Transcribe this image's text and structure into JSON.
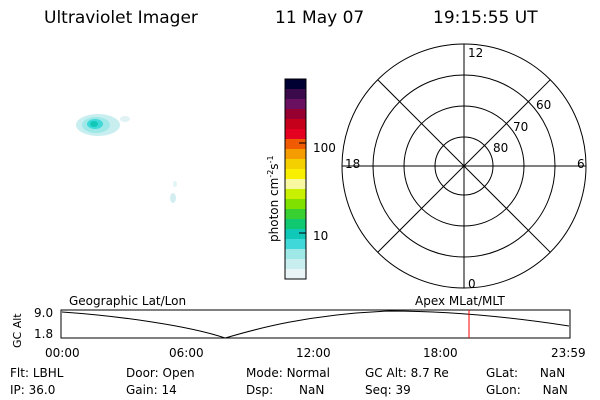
{
  "header": {
    "instrument": "Ultraviolet Imager",
    "date": "11 May 07",
    "time": "19:15:55 UT"
  },
  "colorbar": {
    "label": "photon cm",
    "exp1": "-2",
    "unit2": "s",
    "exp2": "-1",
    "tick_100": "100",
    "tick_10": "10",
    "colors": [
      "#000033",
      "#3a0a4a",
      "#6a1060",
      "#960030",
      "#c4001a",
      "#e40020",
      "#f05a00",
      "#f49c00",
      "#f4d000",
      "#f8f000",
      "#f8f8a0",
      "#c8f000",
      "#80e000",
      "#38d030",
      "#10c870",
      "#10c8b8",
      "#40d8d8",
      "#9ee8e8",
      "#c8eef0",
      "#e8f4f6"
    ]
  },
  "polar": {
    "mlt_top": "12",
    "mlt_left": "18",
    "mlt_right": "6",
    "mlt_bottom": "0",
    "lat_60": "60",
    "lat_70": "70",
    "lat_80": "80"
  },
  "timeline": {
    "left_title": "Geographic Lat/Lon",
    "right_title": "Apex MLat/MLT",
    "axis_label": "GC Alt",
    "y_top": "9.0",
    "y_bottom": "1.8",
    "times": [
      "00:00",
      "06:00",
      "12:00",
      "18:00",
      "23:59"
    ],
    "marker_color": "#ff0000"
  },
  "info": {
    "flt_label": "Flt:",
    "flt_value": "LBHL",
    "ip_label": "IP:",
    "ip_value": "36.0",
    "door_label": "Door:",
    "door_value": "Open",
    "gain_label": "Gain:",
    "gain_value": "14",
    "mode_label": "Mode:",
    "mode_value": "Normal",
    "dsp_label": "Dsp:",
    "dsp_value": "NaN",
    "gcalt_label": "GC Alt:",
    "gcalt_value": "8.7 Re",
    "seq_label": "Seq:",
    "seq_value": "39",
    "glat_label": "GLat:",
    "glat_value": "NaN",
    "glon_label": "GLon:",
    "glon_value": "NaN"
  }
}
